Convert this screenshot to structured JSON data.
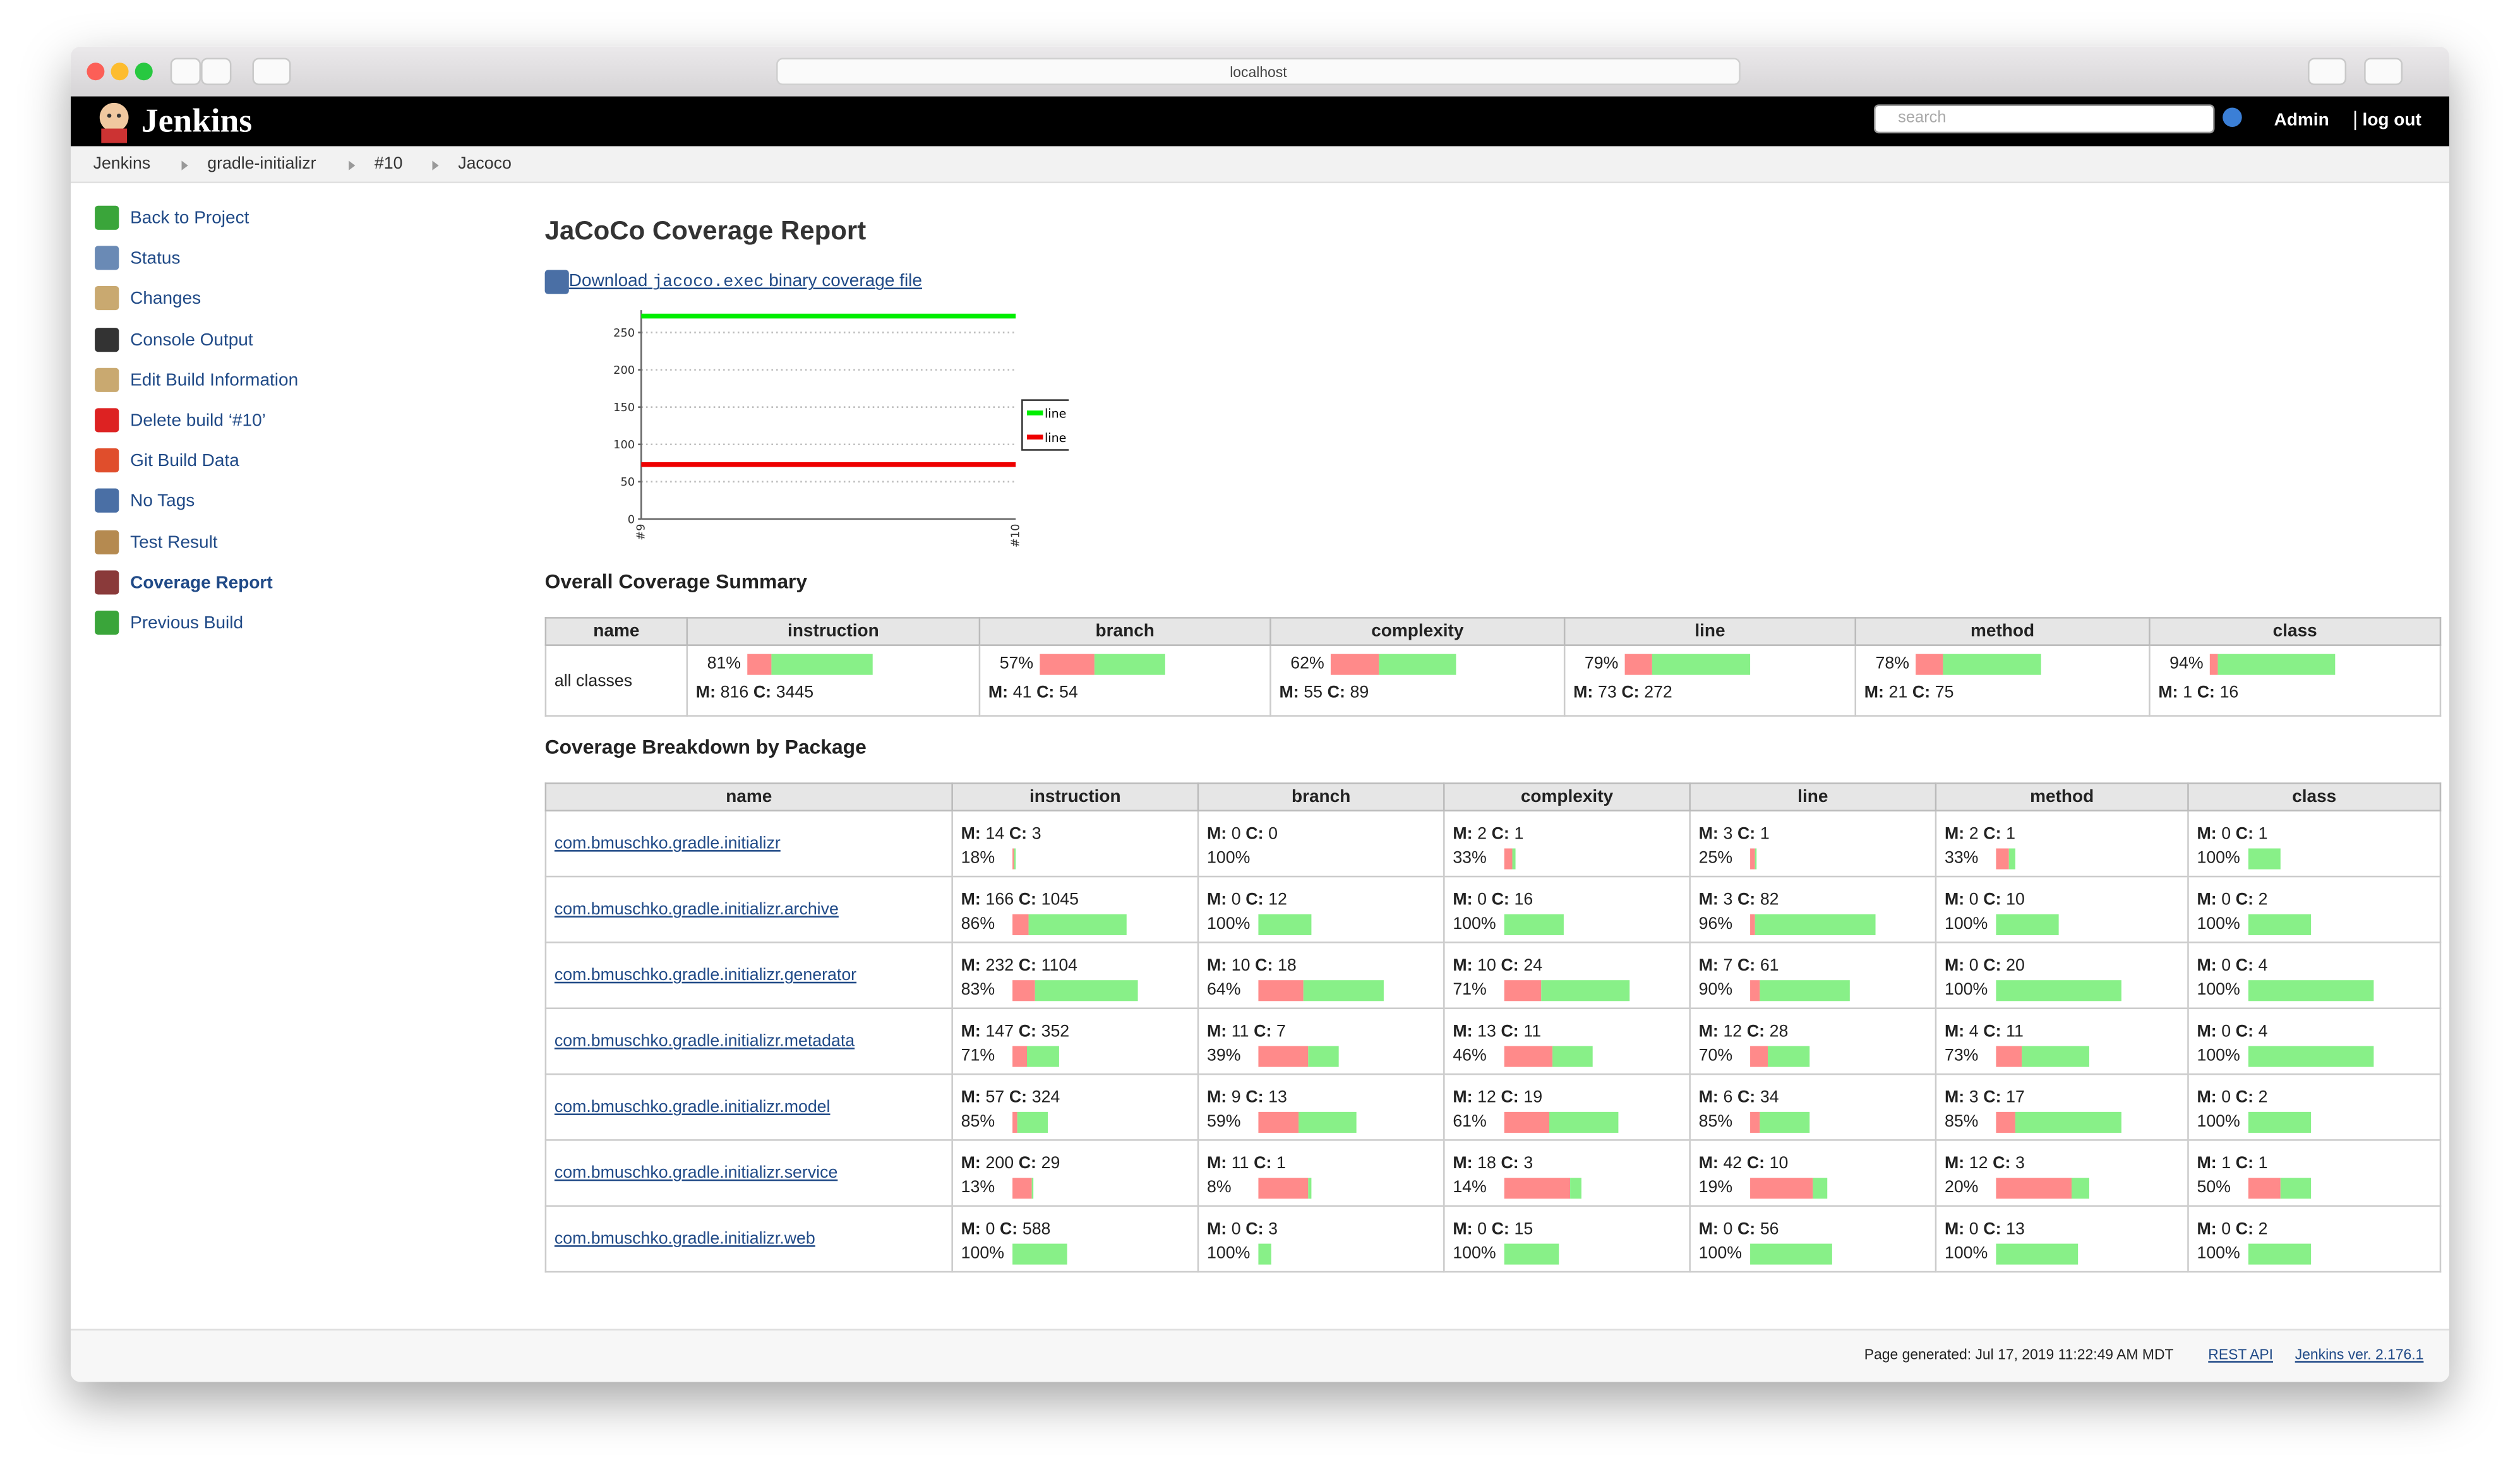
{
  "browser": {
    "url": "localhost"
  },
  "header": {
    "title": "Jenkins",
    "search_placeholder": "search",
    "user": "Admin",
    "logout": "log out"
  },
  "breadcrumbs": [
    "Jenkins",
    "gradle-initializr",
    "#10",
    "Jacoco"
  ],
  "sidebar": [
    "Back to Project",
    "Status",
    "Changes",
    "Console Output",
    "Edit Build Information",
    "Delete build ‘#10’",
    "Git Build Data",
    "No Tags",
    "Test Result",
    "Coverage Report",
    "Previous Build"
  ],
  "report": {
    "title": "JaCoCo Coverage Report",
    "download": {
      "before": "Download",
      "code": "jacoco.exec",
      "after": "binary coverage file"
    }
  },
  "chart_data": {
    "type": "line",
    "categories": [
      "#9",
      "#10"
    ],
    "series": [
      {
        "name": "line covered",
        "color": "#00ee00",
        "values": [
          272,
          272
        ]
      },
      {
        "name": "line missed",
        "color": "#ee0000",
        "values": [
          73,
          73
        ]
      }
    ],
    "ylim": [
      0,
      280
    ],
    "yticks": [
      0,
      50,
      100,
      150,
      200,
      250
    ],
    "grid": true,
    "legend": "right"
  },
  "labels": {
    "missed": "M:",
    "covered": "C:"
  },
  "summary": {
    "title": "Overall Coverage Summary",
    "columns": [
      "name",
      "instruction",
      "branch",
      "complexity",
      "line",
      "method",
      "class"
    ],
    "rows": [
      {
        "name": "all classes",
        "metrics": [
          {
            "m": 816,
            "c": 3445,
            "pct": "81%"
          },
          {
            "m": 41,
            "c": 54,
            "pct": "57%"
          },
          {
            "m": 55,
            "c": 89,
            "pct": "62%"
          },
          {
            "m": 73,
            "c": 272,
            "pct": "79%"
          },
          {
            "m": 21,
            "c": 75,
            "pct": "78%"
          },
          {
            "m": 1,
            "c": 16,
            "pct": "94%"
          }
        ]
      }
    ]
  },
  "packages": {
    "title": "Coverage Breakdown by Package",
    "columns": [
      "name",
      "instruction",
      "branch",
      "complexity",
      "line",
      "method",
      "class"
    ],
    "rows": [
      {
        "name": "com.bmuschko.gradle.initializr",
        "metrics": [
          {
            "m": 14,
            "c": 3,
            "pct": "18%"
          },
          {
            "m": 0,
            "c": 0,
            "pct": "100%"
          },
          {
            "m": 2,
            "c": 1,
            "pct": "33%"
          },
          {
            "m": 3,
            "c": 1,
            "pct": "25%"
          },
          {
            "m": 2,
            "c": 1,
            "pct": "33%"
          },
          {
            "m": 0,
            "c": 1,
            "pct": "100%"
          }
        ]
      },
      {
        "name": "com.bmuschko.gradle.initializr.archive",
        "metrics": [
          {
            "m": 166,
            "c": 1045,
            "pct": "86%"
          },
          {
            "m": 0,
            "c": 12,
            "pct": "100%"
          },
          {
            "m": 0,
            "c": 16,
            "pct": "100%"
          },
          {
            "m": 3,
            "c": 82,
            "pct": "96%"
          },
          {
            "m": 0,
            "c": 10,
            "pct": "100%"
          },
          {
            "m": 0,
            "c": 2,
            "pct": "100%"
          }
        ]
      },
      {
        "name": "com.bmuschko.gradle.initializr.generator",
        "metrics": [
          {
            "m": 232,
            "c": 1104,
            "pct": "83%"
          },
          {
            "m": 10,
            "c": 18,
            "pct": "64%"
          },
          {
            "m": 10,
            "c": 24,
            "pct": "71%"
          },
          {
            "m": 7,
            "c": 61,
            "pct": "90%"
          },
          {
            "m": 0,
            "c": 20,
            "pct": "100%"
          },
          {
            "m": 0,
            "c": 4,
            "pct": "100%"
          }
        ]
      },
      {
        "name": "com.bmuschko.gradle.initializr.metadata",
        "metrics": [
          {
            "m": 147,
            "c": 352,
            "pct": "71%"
          },
          {
            "m": 11,
            "c": 7,
            "pct": "39%"
          },
          {
            "m": 13,
            "c": 11,
            "pct": "46%"
          },
          {
            "m": 12,
            "c": 28,
            "pct": "70%"
          },
          {
            "m": 4,
            "c": 11,
            "pct": "73%"
          },
          {
            "m": 0,
            "c": 4,
            "pct": "100%"
          }
        ]
      },
      {
        "name": "com.bmuschko.gradle.initializr.model",
        "metrics": [
          {
            "m": 57,
            "c": 324,
            "pct": "85%"
          },
          {
            "m": 9,
            "c": 13,
            "pct": "59%"
          },
          {
            "m": 12,
            "c": 19,
            "pct": "61%"
          },
          {
            "m": 6,
            "c": 34,
            "pct": "85%"
          },
          {
            "m": 3,
            "c": 17,
            "pct": "85%"
          },
          {
            "m": 0,
            "c": 2,
            "pct": "100%"
          }
        ]
      },
      {
        "name": "com.bmuschko.gradle.initializr.service",
        "metrics": [
          {
            "m": 200,
            "c": 29,
            "pct": "13%"
          },
          {
            "m": 11,
            "c": 1,
            "pct": "8%"
          },
          {
            "m": 18,
            "c": 3,
            "pct": "14%"
          },
          {
            "m": 42,
            "c": 10,
            "pct": "19%"
          },
          {
            "m": 12,
            "c": 3,
            "pct": "20%"
          },
          {
            "m": 1,
            "c": 1,
            "pct": "50%"
          }
        ]
      },
      {
        "name": "com.bmuschko.gradle.initializr.web",
        "metrics": [
          {
            "m": 0,
            "c": 588,
            "pct": "100%"
          },
          {
            "m": 0,
            "c": 3,
            "pct": "100%"
          },
          {
            "m": 0,
            "c": 15,
            "pct": "100%"
          },
          {
            "m": 0,
            "c": 56,
            "pct": "100%"
          },
          {
            "m": 0,
            "c": 13,
            "pct": "100%"
          },
          {
            "m": 0,
            "c": 2,
            "pct": "100%"
          }
        ]
      }
    ]
  },
  "footer": {
    "generated": "Page generated: Jul 17, 2019 11:22:49 AM MDT",
    "rest_api": "REST API",
    "version": "Jenkins ver. 2.176.1"
  }
}
